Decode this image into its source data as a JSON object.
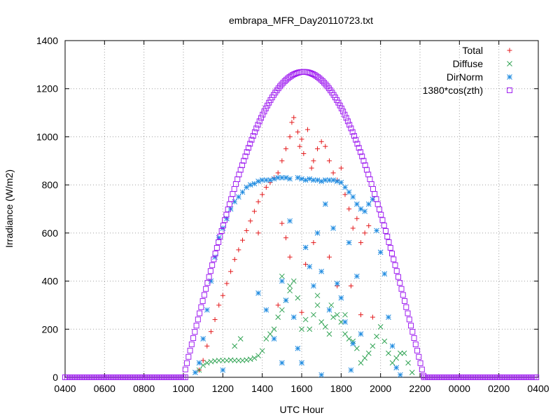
{
  "chart_data": {
    "type": "scatter",
    "title": "embrapa_MFR_Day20110723.txt",
    "xlabel": "UTC Hour",
    "ylabel": "Irradiance (W/m2)",
    "xlim": [
      4,
      28
    ],
    "ylim": [
      0,
      1400
    ],
    "xtick_values": [
      4,
      6,
      8,
      10,
      12,
      14,
      16,
      18,
      20,
      22,
      24,
      26,
      28
    ],
    "xtick_labels": [
      "0400",
      "0600",
      "0800",
      "1000",
      "1200",
      "1400",
      "1600",
      "1800",
      "2000",
      "2200",
      "0000",
      "0200",
      "0400"
    ],
    "ytick_values": [
      0,
      200,
      400,
      600,
      800,
      1000,
      1200,
      1400
    ],
    "ytick_labels": [
      "0",
      "200",
      "400",
      "600",
      "800",
      "1000",
      "1200",
      "1400"
    ],
    "grid": true,
    "legend_position": "top-right",
    "series": [
      {
        "name": "Total",
        "marker": "plus",
        "color": "#e41a1c",
        "points": [
          [
            10.8,
            30
          ],
          [
            11.0,
            70
          ],
          [
            11.2,
            130
          ],
          [
            11.4,
            190
          ],
          [
            11.6,
            240
          ],
          [
            11.8,
            300
          ],
          [
            12.0,
            340
          ],
          [
            12.2,
            390
          ],
          [
            12.4,
            440
          ],
          [
            12.6,
            490
          ],
          [
            12.8,
            530
          ],
          [
            13.0,
            570
          ],
          [
            13.2,
            610
          ],
          [
            13.4,
            650
          ],
          [
            13.6,
            690
          ],
          [
            13.8,
            730
          ],
          [
            14.0,
            760
          ],
          [
            14.2,
            790
          ],
          [
            14.4,
            810
          ],
          [
            14.6,
            830
          ],
          [
            14.8,
            850
          ],
          [
            15.0,
            900
          ],
          [
            15.2,
            950
          ],
          [
            15.4,
            1000
          ],
          [
            15.5,
            1060
          ],
          [
            15.6,
            1080
          ],
          [
            15.8,
            1020
          ],
          [
            15.9,
            960
          ],
          [
            16.0,
            990
          ],
          [
            16.1,
            930
          ],
          [
            16.3,
            1030
          ],
          [
            16.5,
            870
          ],
          [
            16.6,
            900
          ],
          [
            16.8,
            950
          ],
          [
            17.0,
            980
          ],
          [
            17.2,
            960
          ],
          [
            17.4,
            900
          ],
          [
            17.6,
            850
          ],
          [
            17.8,
            820
          ],
          [
            18.0,
            870
          ],
          [
            18.2,
            760
          ],
          [
            18.4,
            700
          ],
          [
            18.6,
            620
          ],
          [
            18.8,
            660
          ],
          [
            19.0,
            560
          ],
          [
            19.2,
            600
          ],
          [
            19.4,
            630
          ],
          [
            15.0,
            640
          ],
          [
            15.2,
            580
          ],
          [
            15.4,
            500
          ],
          [
            16.2,
            470
          ],
          [
            16.6,
            560
          ],
          [
            17.4,
            500
          ],
          [
            17.8,
            380
          ],
          [
            18.5,
            380
          ],
          [
            19.0,
            260
          ],
          [
            19.6,
            250
          ],
          [
            14.8,
            300
          ],
          [
            16.0,
            270
          ],
          [
            13.8,
            600
          ]
        ]
      },
      {
        "name": "Diffuse",
        "marker": "cross",
        "color": "#31a354",
        "points": [
          [
            10.8,
            30
          ],
          [
            11.0,
            50
          ],
          [
            11.2,
            60
          ],
          [
            11.4,
            65
          ],
          [
            11.6,
            68
          ],
          [
            11.8,
            70
          ],
          [
            12.0,
            70
          ],
          [
            12.2,
            70
          ],
          [
            12.4,
            72
          ],
          [
            12.6,
            70
          ],
          [
            12.8,
            70
          ],
          [
            13.0,
            70
          ],
          [
            13.2,
            72
          ],
          [
            13.4,
            75
          ],
          [
            13.6,
            80
          ],
          [
            13.8,
            90
          ],
          [
            14.0,
            110
          ],
          [
            14.2,
            160
          ],
          [
            14.4,
            180
          ],
          [
            14.6,
            200
          ],
          [
            14.8,
            250
          ],
          [
            15.0,
            280
          ],
          [
            15.2,
            320
          ],
          [
            15.4,
            360
          ],
          [
            15.6,
            400
          ],
          [
            15.8,
            330
          ],
          [
            16.0,
            200
          ],
          [
            16.2,
            240
          ],
          [
            16.4,
            200
          ],
          [
            16.6,
            260
          ],
          [
            16.8,
            300
          ],
          [
            17.0,
            230
          ],
          [
            17.2,
            210
          ],
          [
            17.4,
            180
          ],
          [
            17.6,
            250
          ],
          [
            17.8,
            260
          ],
          [
            18.0,
            230
          ],
          [
            18.2,
            180
          ],
          [
            18.4,
            160
          ],
          [
            18.6,
            150
          ],
          [
            18.8,
            120
          ],
          [
            19.0,
            60
          ],
          [
            19.2,
            80
          ],
          [
            19.4,
            100
          ],
          [
            19.6,
            130
          ],
          [
            19.8,
            170
          ],
          [
            20.0,
            210
          ],
          [
            20.2,
            150
          ],
          [
            20.4,
            100
          ],
          [
            20.6,
            60
          ],
          [
            20.8,
            80
          ],
          [
            21.0,
            100
          ],
          [
            21.2,
            100
          ],
          [
            21.4,
            60
          ],
          [
            21.6,
            20
          ],
          [
            15.0,
            420
          ],
          [
            15.4,
            380
          ],
          [
            16.8,
            340
          ],
          [
            17.5,
            300
          ],
          [
            18.2,
            260
          ],
          [
            12.6,
            130
          ],
          [
            12.9,
            160
          ]
        ]
      },
      {
        "name": "DirNorm",
        "marker": "star",
        "color": "#1f8be0",
        "points": [
          [
            10.6,
            20
          ],
          [
            10.8,
            60
          ],
          [
            11.0,
            160
          ],
          [
            11.2,
            280
          ],
          [
            11.4,
            400
          ],
          [
            11.6,
            500
          ],
          [
            11.8,
            580
          ],
          [
            12.0,
            620
          ],
          [
            12.2,
            660
          ],
          [
            12.4,
            700
          ],
          [
            12.6,
            730
          ],
          [
            12.8,
            750
          ],
          [
            13.0,
            770
          ],
          [
            13.2,
            790
          ],
          [
            13.4,
            800
          ],
          [
            13.6,
            805
          ],
          [
            13.8,
            815
          ],
          [
            14.0,
            820
          ],
          [
            14.2,
            820
          ],
          [
            14.4,
            820
          ],
          [
            14.6,
            825
          ],
          [
            14.8,
            830
          ],
          [
            15.0,
            830
          ],
          [
            15.2,
            830
          ],
          [
            15.4,
            825
          ],
          [
            15.8,
            830
          ],
          [
            16.0,
            825
          ],
          [
            16.2,
            820
          ],
          [
            16.4,
            825
          ],
          [
            16.6,
            820
          ],
          [
            16.8,
            820
          ],
          [
            17.0,
            815
          ],
          [
            17.2,
            820
          ],
          [
            17.4,
            820
          ],
          [
            17.6,
            820
          ],
          [
            17.8,
            815
          ],
          [
            18.0,
            810
          ],
          [
            18.2,
            790
          ],
          [
            18.4,
            770
          ],
          [
            18.6,
            750
          ],
          [
            18.8,
            720
          ],
          [
            19.0,
            700
          ],
          [
            19.2,
            690
          ],
          [
            19.4,
            720
          ],
          [
            19.6,
            740
          ],
          [
            19.8,
            610
          ],
          [
            20.0,
            520
          ],
          [
            20.2,
            430
          ],
          [
            20.4,
            250
          ],
          [
            20.6,
            130
          ],
          [
            20.8,
            40
          ],
          [
            21.0,
            10
          ],
          [
            15.0,
            400
          ],
          [
            15.2,
            320
          ],
          [
            15.4,
            650
          ],
          [
            15.6,
            250
          ],
          [
            15.8,
            120
          ],
          [
            16.0,
            60
          ],
          [
            16.2,
            540
          ],
          [
            16.4,
            460
          ],
          [
            16.6,
            380
          ],
          [
            16.8,
            600
          ],
          [
            17.0,
            440
          ],
          [
            17.2,
            720
          ],
          [
            17.4,
            280
          ],
          [
            17.6,
            620
          ],
          [
            17.8,
            390
          ],
          [
            18.0,
            330
          ],
          [
            18.2,
            230
          ],
          [
            18.4,
            560
          ],
          [
            18.6,
            140
          ],
          [
            18.8,
            420
          ],
          [
            19.0,
            180
          ],
          [
            12.0,
            30
          ],
          [
            13.8,
            350
          ],
          [
            14.2,
            280
          ],
          [
            14.6,
            160
          ],
          [
            15.0,
            60
          ],
          [
            17.0,
            10
          ],
          [
            18.5,
            30
          ]
        ]
      },
      {
        "name": "1380*cos(zth)",
        "marker": "square",
        "color": "#a020f0",
        "curve": {
          "start_hour": 10.1,
          "end_hour": 22.2,
          "peak_hour": 16.1,
          "peak_value": 1270,
          "base_value": 0
        }
      }
    ]
  }
}
